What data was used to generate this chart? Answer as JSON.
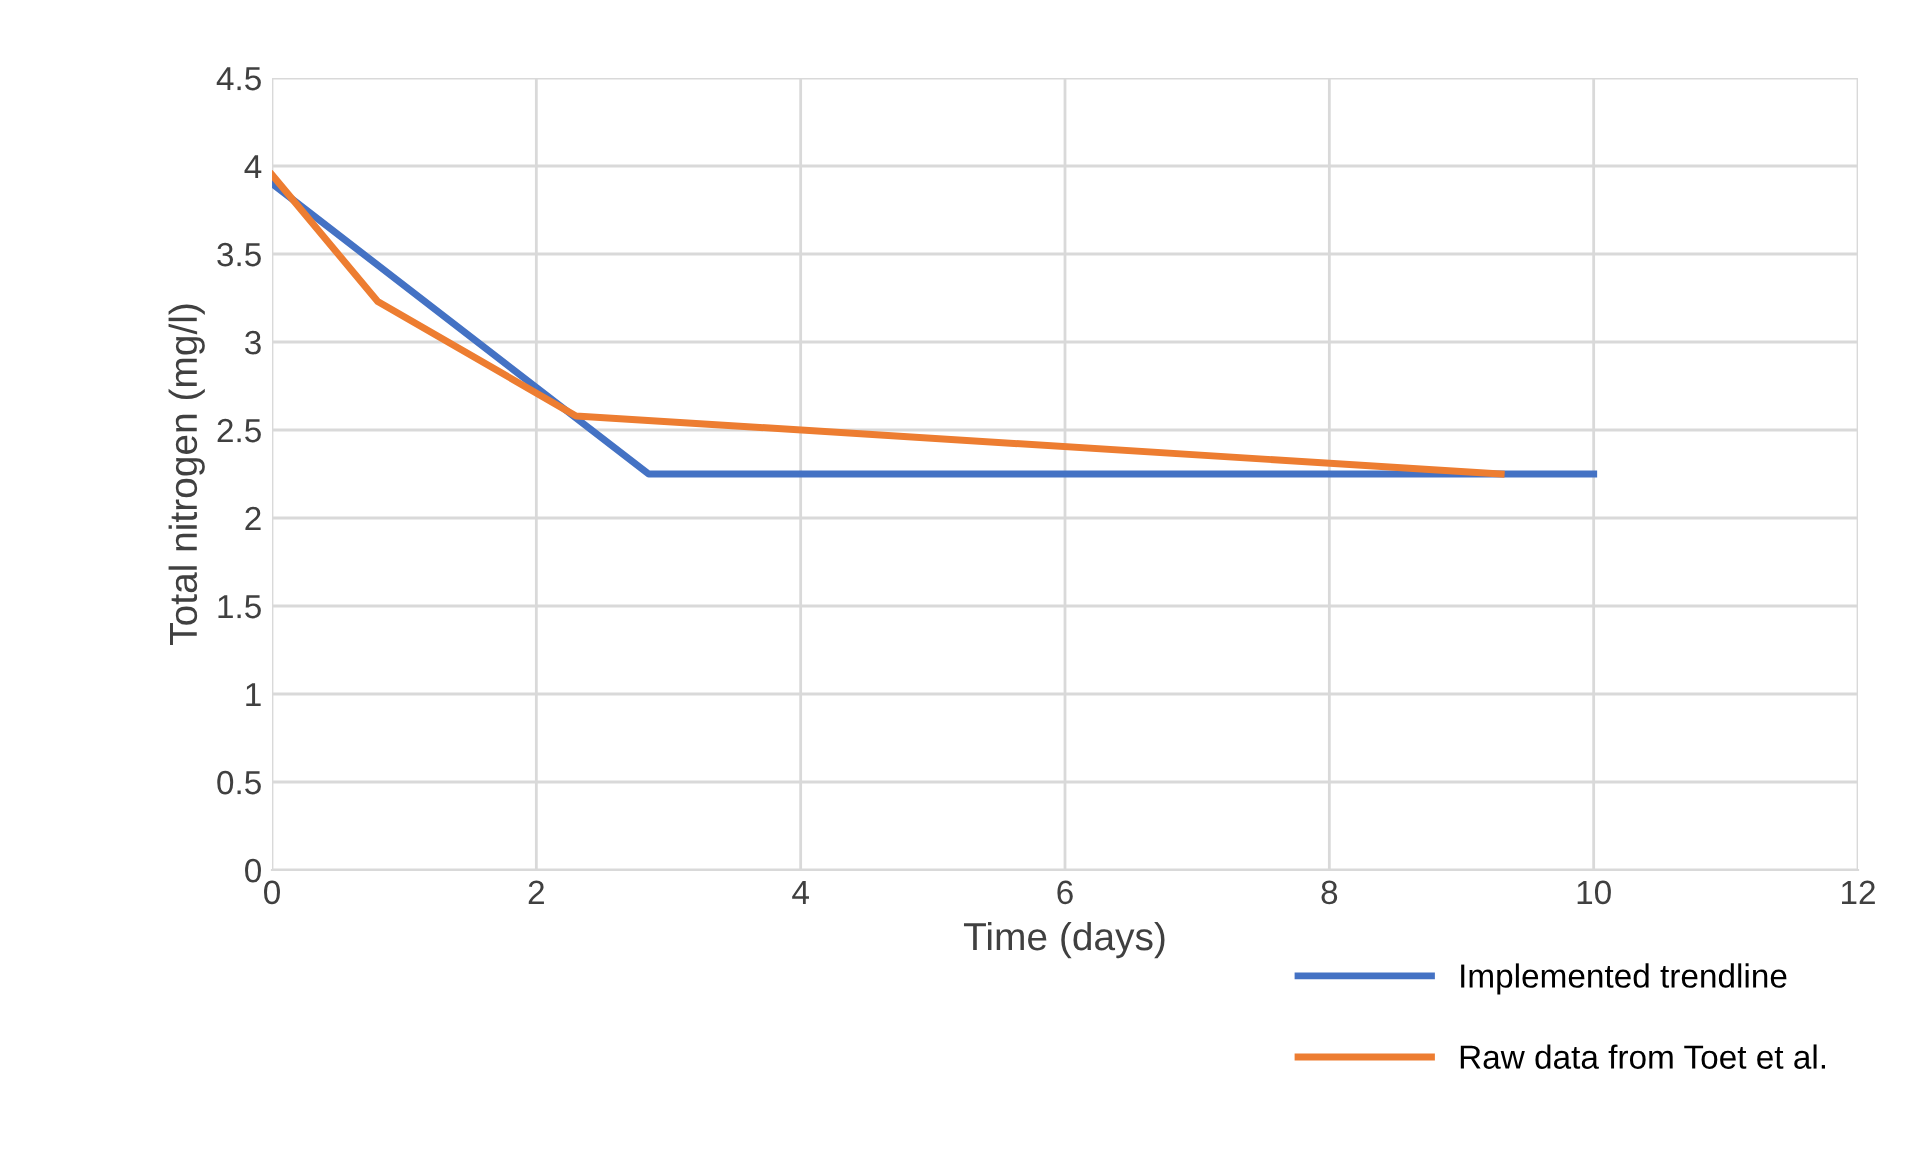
{
  "chart_data": {
    "type": "line",
    "xlabel": "Time (days)",
    "ylabel": "Total nitrogen (mg/l)",
    "series": [
      {
        "name": "Implemented trendline",
        "color": "#4472c4",
        "x": [
          0,
          2.85,
          10
        ],
        "values": [
          3.9,
          2.25,
          2.25
        ]
      },
      {
        "name": "Raw data from Toet et al.",
        "color": "#ed7d31",
        "x": [
          0,
          0.8,
          2.3,
          9.3
        ],
        "values": [
          3.95,
          3.23,
          2.58,
          2.25
        ]
      }
    ],
    "xlim": [
      0,
      12
    ],
    "xticks": [
      0,
      2,
      4,
      6,
      8,
      10,
      12
    ],
    "ylim": [
      0,
      4.5
    ],
    "yticks": [
      0,
      {
        "value": 0.5,
        "label": "0.5"
      },
      1,
      {
        "value": 1.5,
        "label": "1.5"
      },
      2,
      {
        "value": 2.5,
        "label": "2.5"
      },
      3,
      {
        "value": 3.5,
        "label": "3.5"
      },
      4,
      {
        "value": 4.5,
        "label": "4.5"
      }
    ],
    "grid": true,
    "legend": "bottom right",
    "marker": "none",
    "line_style": "solid"
  }
}
